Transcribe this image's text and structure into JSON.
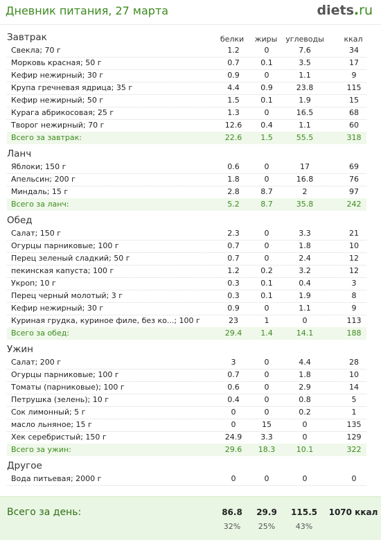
{
  "header": {
    "title": "Дневник питания, 27 марта",
    "logo_main": "diets",
    "logo_dot": ".",
    "logo_tld": "ru"
  },
  "columns": {
    "protein": "белки",
    "fat": "жиры",
    "carbs": "углеводы",
    "kcal": "ккал"
  },
  "meals": {
    "breakfast": {
      "title": "Завтрак",
      "items": [
        {
          "name": "Свекла; 70 г",
          "protein": "1.2",
          "fat": "0",
          "carbs": "7.6",
          "kcal": "34"
        },
        {
          "name": "Морковь красная; 50 г",
          "protein": "0.7",
          "fat": "0.1",
          "carbs": "3.5",
          "kcal": "17"
        },
        {
          "name": "Кефир нежирный; 30 г",
          "protein": "0.9",
          "fat": "0",
          "carbs": "1.1",
          "kcal": "9"
        },
        {
          "name": "Крупа гречневая ядрица; 35 г",
          "protein": "4.4",
          "fat": "0.9",
          "carbs": "23.8",
          "kcal": "115"
        },
        {
          "name": "Кефир нежирный; 50 г",
          "protein": "1.5",
          "fat": "0.1",
          "carbs": "1.9",
          "kcal": "15"
        },
        {
          "name": "Курага абрикосовая; 25 г",
          "protein": "1.3",
          "fat": "0",
          "carbs": "16.5",
          "kcal": "68"
        },
        {
          "name": "Творог нежирный; 70 г",
          "protein": "12.6",
          "fat": "0.4",
          "carbs": "1.1",
          "kcal": "60"
        }
      ],
      "total": {
        "label": "Всего за завтрак:",
        "protein": "22.6",
        "fat": "1.5",
        "carbs": "55.5",
        "kcal": "318"
      }
    },
    "lunch": {
      "title": "Ланч",
      "items": [
        {
          "name": "Яблоки; 150 г",
          "protein": "0.6",
          "fat": "0",
          "carbs": "17",
          "kcal": "69"
        },
        {
          "name": "Апельсин; 200 г",
          "protein": "1.8",
          "fat": "0",
          "carbs": "16.8",
          "kcal": "76"
        },
        {
          "name": "Миндаль; 15 г",
          "protein": "2.8",
          "fat": "8.7",
          "carbs": "2",
          "kcal": "97"
        }
      ],
      "total": {
        "label": "Всего за ланч:",
        "protein": "5.2",
        "fat": "8.7",
        "carbs": "35.8",
        "kcal": "242"
      }
    },
    "dinner": {
      "title": "Обед",
      "items": [
        {
          "name": "Салат; 150 г",
          "protein": "2.3",
          "fat": "0",
          "carbs": "3.3",
          "kcal": "21"
        },
        {
          "name": "Огурцы парниковые; 100 г",
          "protein": "0.7",
          "fat": "0",
          "carbs": "1.8",
          "kcal": "10"
        },
        {
          "name": "Перец зеленый сладкий; 50 г",
          "protein": "0.7",
          "fat": "0",
          "carbs": "2.4",
          "kcal": "12"
        },
        {
          "name": "пекинская капуста; 100 г",
          "protein": "1.2",
          "fat": "0.2",
          "carbs": "3.2",
          "kcal": "12"
        },
        {
          "name": "Укроп; 10 г",
          "protein": "0.3",
          "fat": "0.1",
          "carbs": "0.4",
          "kcal": "3"
        },
        {
          "name": "Перец черный молотый; 3 г",
          "protein": "0.3",
          "fat": "0.1",
          "carbs": "1.9",
          "kcal": "8"
        },
        {
          "name": "Кефир нежирный; 30 г",
          "protein": "0.9",
          "fat": "0",
          "carbs": "1.1",
          "kcal": "9"
        },
        {
          "name": "Куриная грудка, куриное филе, без ко...; 100 г",
          "protein": "23",
          "fat": "1",
          "carbs": "0",
          "kcal": "113"
        }
      ],
      "total": {
        "label": "Всего за обед:",
        "protein": "29.4",
        "fat": "1.4",
        "carbs": "14.1",
        "kcal": "188"
      }
    },
    "supper": {
      "title": "Ужин",
      "items": [
        {
          "name": "Салат; 200 г",
          "protein": "3",
          "fat": "0",
          "carbs": "4.4",
          "kcal": "28"
        },
        {
          "name": "Огурцы парниковые; 100 г",
          "protein": "0.7",
          "fat": "0",
          "carbs": "1.8",
          "kcal": "10"
        },
        {
          "name": "Томаты (парниковые); 100 г",
          "protein": "0.6",
          "fat": "0",
          "carbs": "2.9",
          "kcal": "14"
        },
        {
          "name": "Петрушка (зелень); 10 г",
          "protein": "0.4",
          "fat": "0",
          "carbs": "0.8",
          "kcal": "5"
        },
        {
          "name": "Сок лимонный; 5 г",
          "protein": "0",
          "fat": "0",
          "carbs": "0.2",
          "kcal": "1"
        },
        {
          "name": "масло льняное; 15 г",
          "protein": "0",
          "fat": "15",
          "carbs": "0",
          "kcal": "135"
        },
        {
          "name": "Хек серебристый; 150 г",
          "protein": "24.9",
          "fat": "3.3",
          "carbs": "0",
          "kcal": "129"
        }
      ],
      "total": {
        "label": "Всего за ужин:",
        "protein": "29.6",
        "fat": "18.3",
        "carbs": "10.1",
        "kcal": "322"
      }
    },
    "other": {
      "title": "Другое",
      "items": [
        {
          "name": "Вода питьевая; 2000 г",
          "protein": "0",
          "fat": "0",
          "carbs": "0",
          "kcal": "0"
        }
      ]
    }
  },
  "day_total": {
    "label": "Всего за день:",
    "protein": "86.8",
    "fat": "29.9",
    "carbs": "115.5",
    "kcal": "1070 ккал",
    "protein_pct": "32%",
    "fat_pct": "25%",
    "carbs_pct": "43%"
  }
}
